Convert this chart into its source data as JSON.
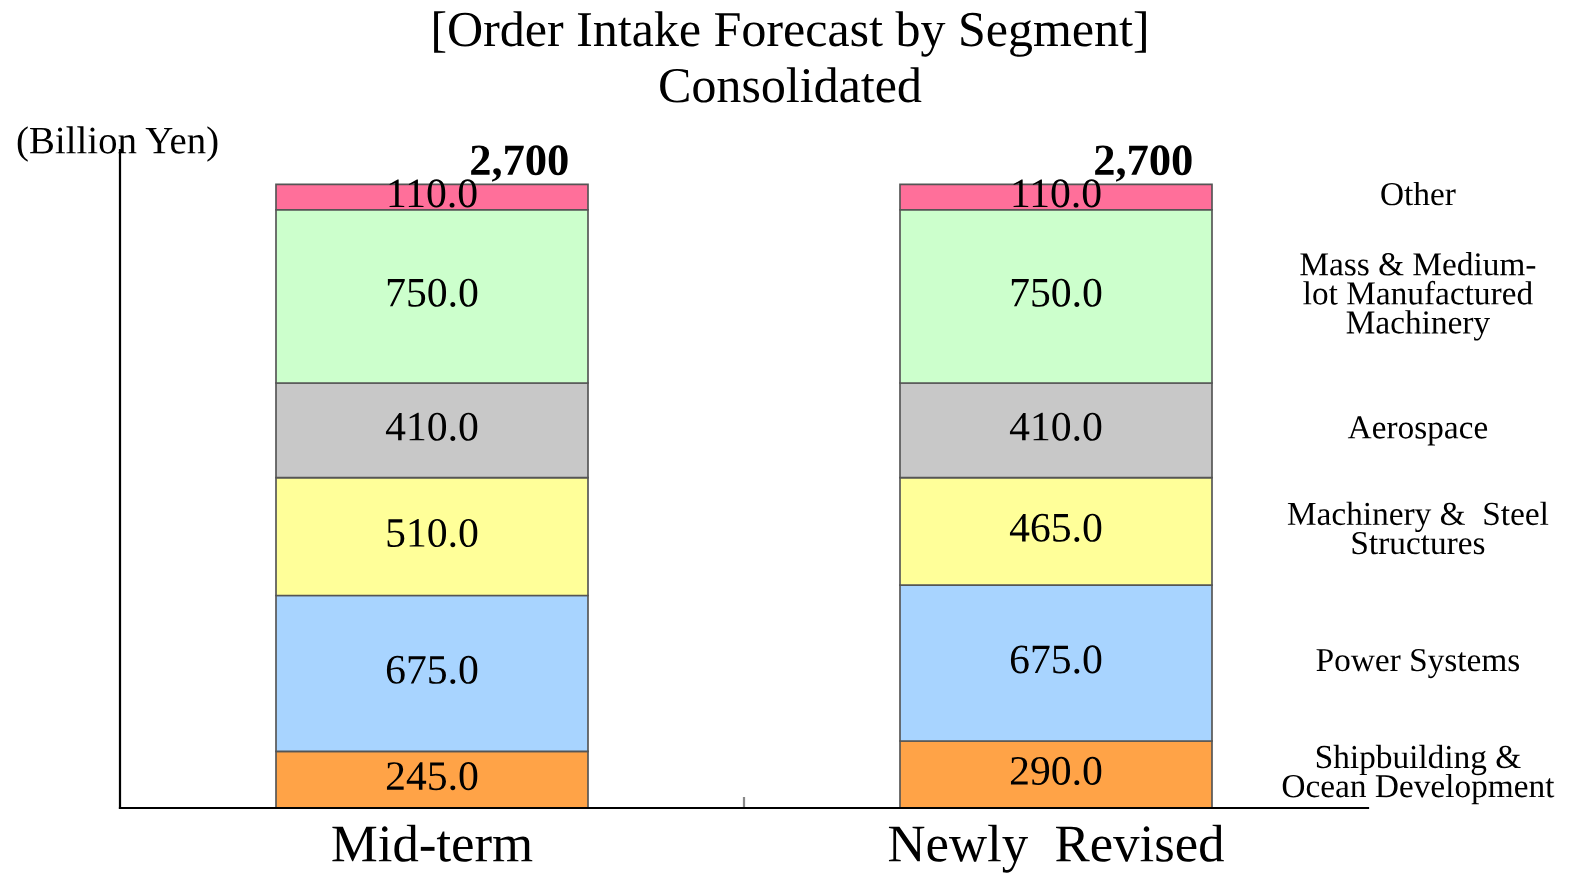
{
  "chart_data": {
    "type": "bar",
    "title": "[Order Intake Forecast by Segment]",
    "subtitle": "Consolidated",
    "ylabel": "(Billion Yen)",
    "categories": [
      "Mid-term",
      "Newly  Revised"
    ],
    "stacked": true,
    "totals": [
      "2,700",
      "2,700"
    ],
    "series": [
      {
        "name": "Shipbuilding &\nOcean Development",
        "color": "#ffa347",
        "values": [
          245,
          290
        ],
        "value_labels": [
          "245.0",
          "290.0"
        ]
      },
      {
        "name": "Power Systems",
        "color": "#a8d4ff",
        "values": [
          675,
          675
        ],
        "value_labels": [
          "675.0",
          "675.0"
        ]
      },
      {
        "name": "Machinery &  Steel\nStructures",
        "color": "#ffff99",
        "values": [
          510,
          465
        ],
        "value_labels": [
          "510.0",
          "465.0"
        ]
      },
      {
        "name": "Aerospace",
        "color": "#c8c8c8",
        "values": [
          410,
          410
        ],
        "value_labels": [
          "410.0",
          "410.0"
        ]
      },
      {
        "name": "Mass & Medium-\nlot Manufactured\nMachinery",
        "color": "#ccffcc",
        "values": [
          750,
          750
        ],
        "value_labels": [
          "750.0",
          "750.0"
        ]
      },
      {
        "name": "Other",
        "color": "#ff6f9a",
        "values": [
          110,
          110
        ],
        "value_labels": [
          "110.0",
          "110.0"
        ]
      }
    ]
  }
}
